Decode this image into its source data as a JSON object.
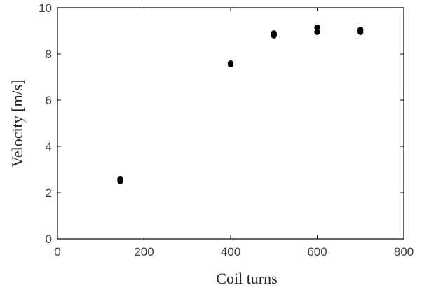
{
  "chart_data": {
    "type": "scatter",
    "title": "",
    "xlabel": "Coil turns",
    "ylabel": "Velocity [m/s]",
    "xlim": [
      0,
      800
    ],
    "ylim": [
      0,
      10
    ],
    "xticks": [
      0,
      200,
      400,
      600,
      800
    ],
    "yticks": [
      0,
      2,
      4,
      6,
      8,
      10
    ],
    "xtick_labels": [
      "0",
      "200",
      "400",
      "600",
      "800"
    ],
    "ytick_labels": [
      "0",
      "2",
      "4",
      "6",
      "8",
      "10"
    ],
    "grid": false,
    "marker_color": "#000000",
    "series": [
      {
        "x": [
          145,
          145,
          145,
          400,
          400,
          500,
          500,
          600,
          600,
          700,
          700
        ],
        "y": [
          2.5,
          2.55,
          2.6,
          7.55,
          7.6,
          8.8,
          8.9,
          8.95,
          9.15,
          8.95,
          9.05
        ]
      }
    ]
  }
}
